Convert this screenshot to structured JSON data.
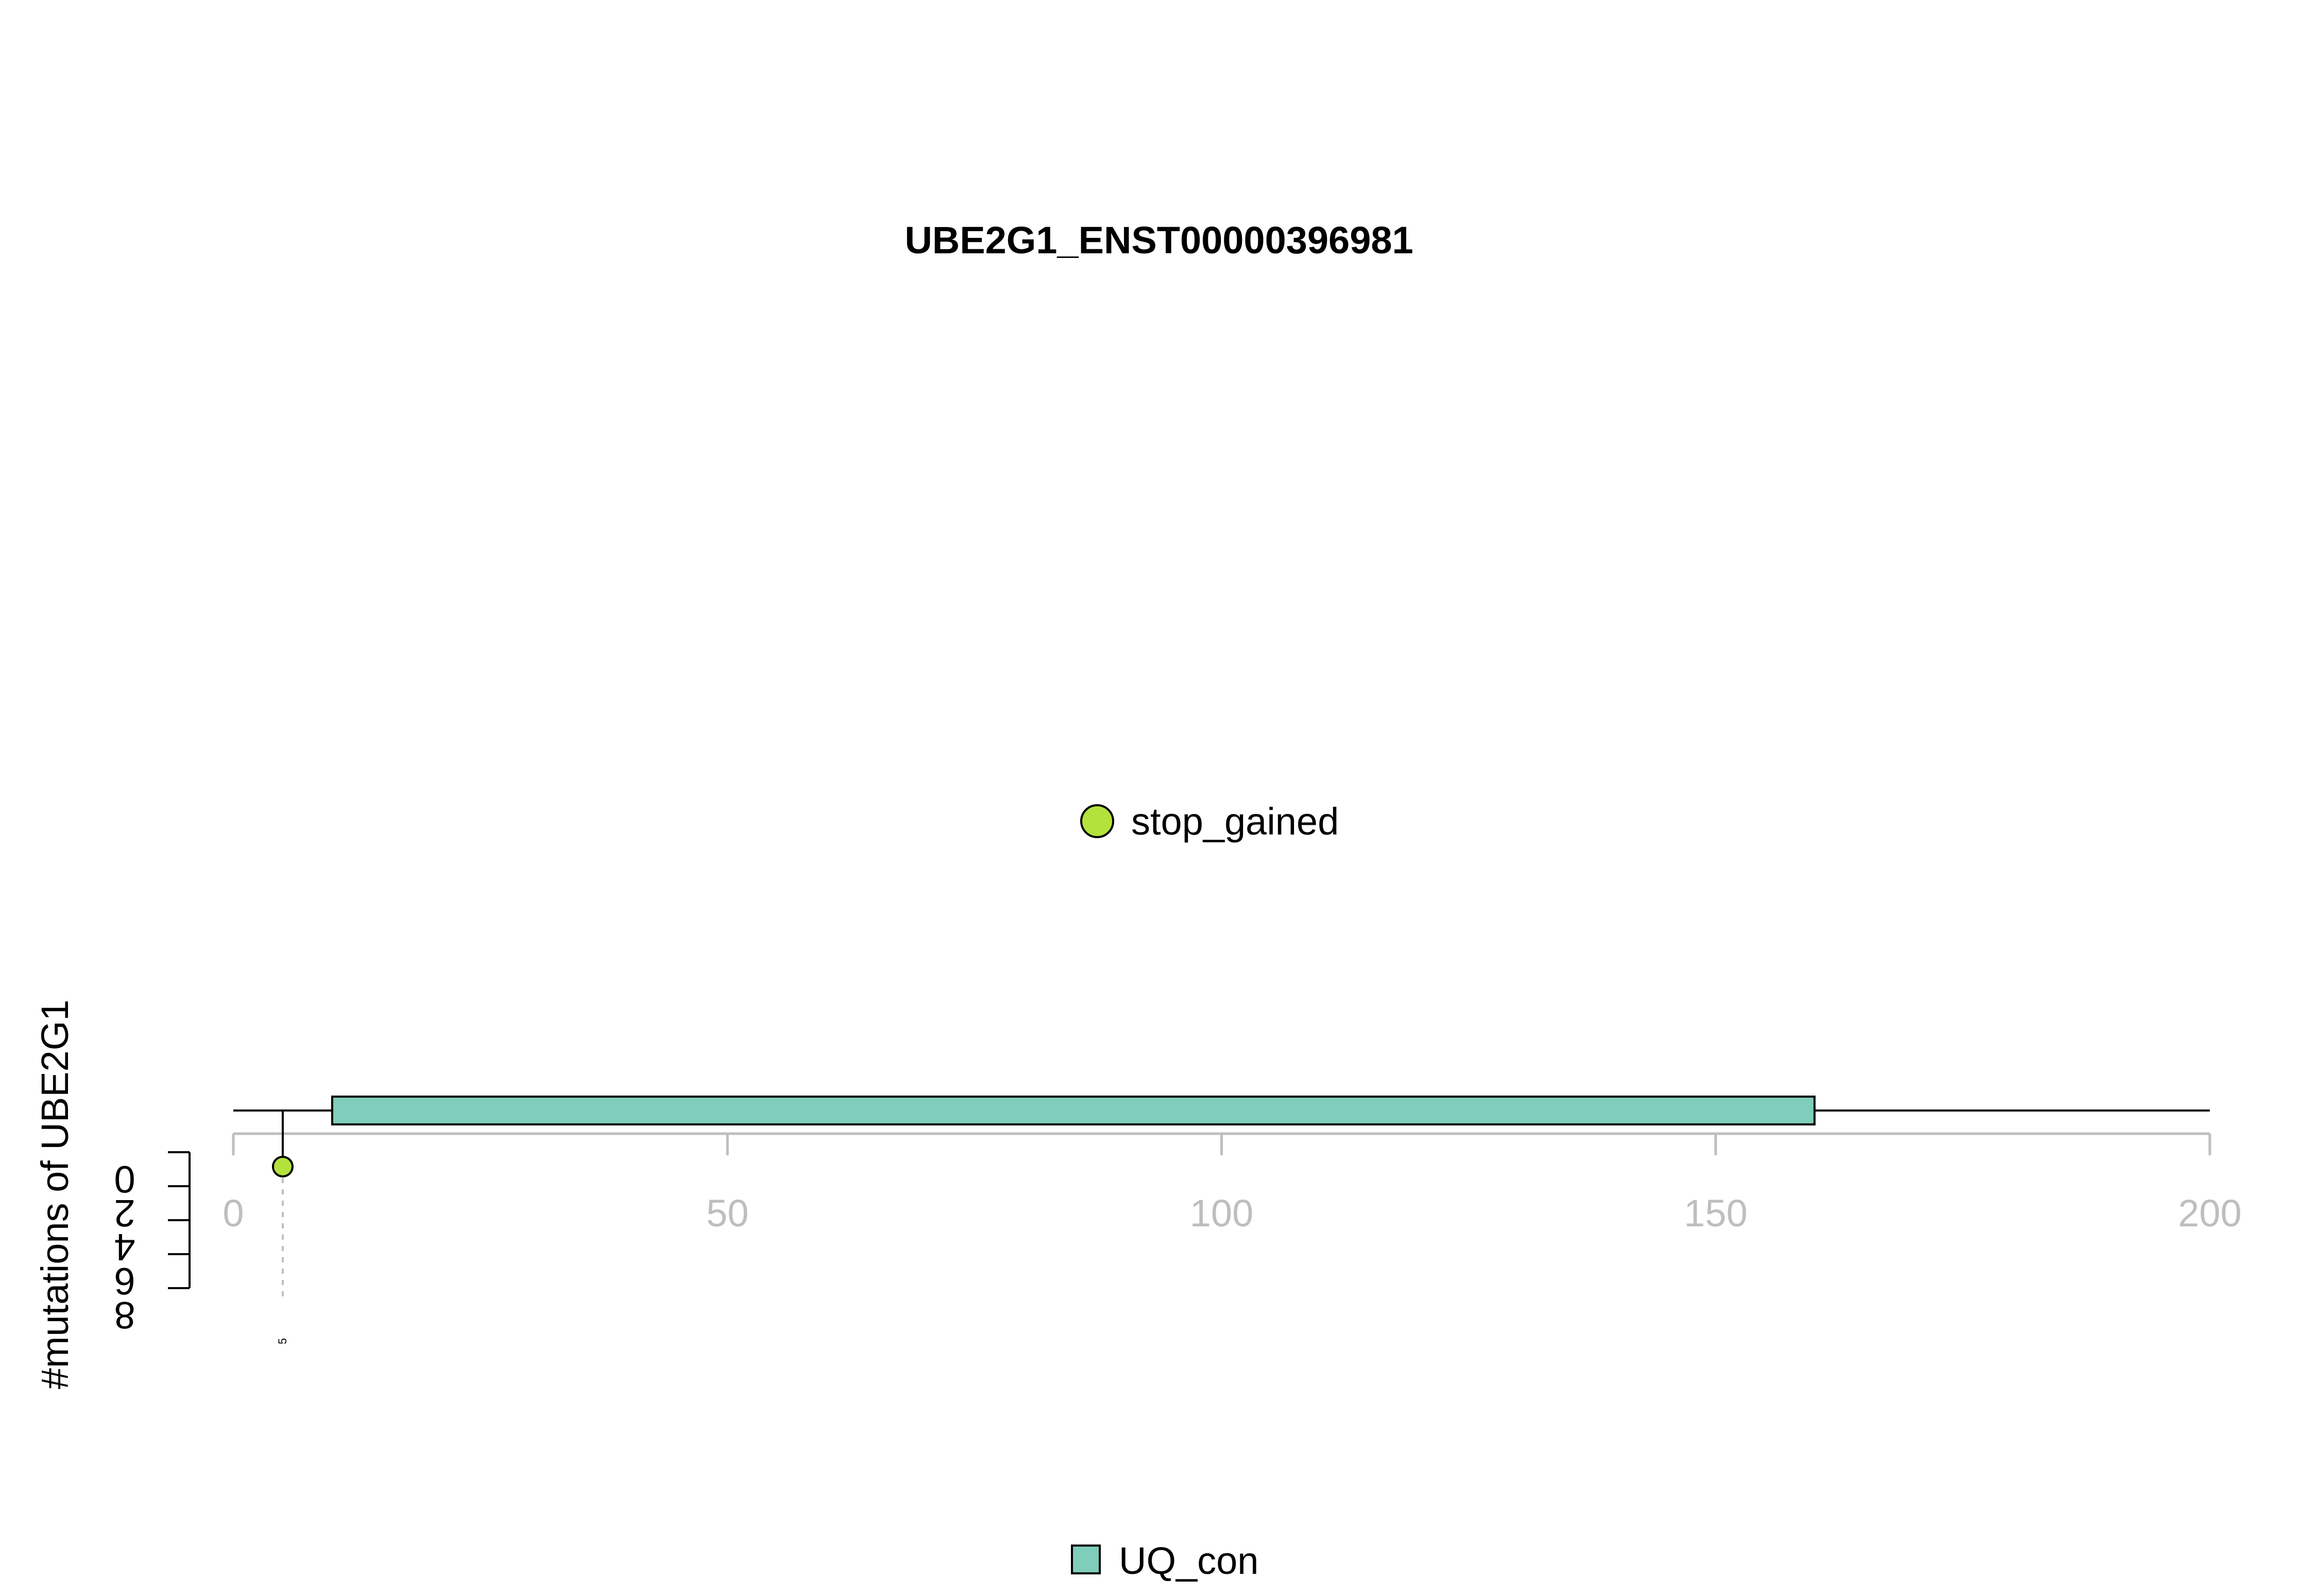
{
  "chart_data": {
    "type": "lollipop",
    "title": "UBE2G1_ENST00000396981",
    "ylabel": "#mutations of UBE2G1",
    "xlabel": "",
    "xlim": [
      0,
      200
    ],
    "x_ticks": [
      0,
      50,
      100,
      150,
      200
    ],
    "x_tick_labels": [
      "0",
      "50",
      "100",
      "150",
      "200"
    ],
    "ylim": [
      0,
      8
    ],
    "y_ticks": [
      0,
      2,
      4,
      6,
      8
    ],
    "y_tick_labels": [
      "0",
      "2",
      "4",
      "6",
      "8"
    ],
    "protein_length": 200,
    "domains": [
      {
        "name": "UQ_con",
        "start": 10,
        "end": 160,
        "color": "#7fcdbb"
      }
    ],
    "mutations": [
      {
        "position": 5,
        "count": 1,
        "type": "stop_gained",
        "label": "5",
        "color": "#b3e23c"
      }
    ],
    "mutation_legend": [
      {
        "type": "stop_gained",
        "label": "stop_gained",
        "color": "#b3e23c"
      }
    ],
    "domain_legend": [
      {
        "label": "UQ_con",
        "color": "#7fcdbb"
      }
    ],
    "colors": {
      "axis": "#bebebe",
      "backbone": "#000000",
      "guide": "#bebebe"
    }
  }
}
